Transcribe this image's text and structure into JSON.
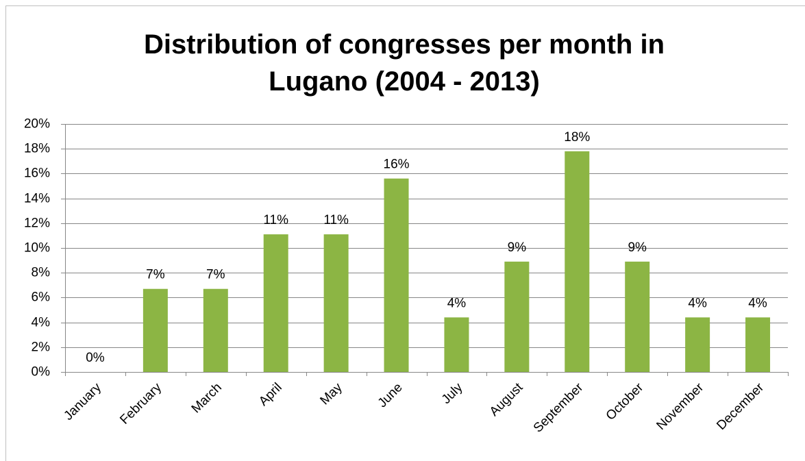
{
  "chart_data": {
    "type": "bar",
    "title": "Distribution of congresses per month in Lugano (2004 - 2013)",
    "categories": [
      "January",
      "February",
      "March",
      "April",
      "May",
      "June",
      "July",
      "August",
      "September",
      "October",
      "November",
      "December"
    ],
    "values": [
      0,
      6.7,
      6.7,
      11.1,
      11.1,
      15.6,
      4.4,
      8.9,
      17.8,
      8.9,
      4.4,
      4.4
    ],
    "value_labels": [
      "0%",
      "7%",
      "7%",
      "11%",
      "11%",
      "16%",
      "4%",
      "9%",
      "18%",
      "9%",
      "4%",
      "4%"
    ],
    "color": "#8cb544",
    "ylim": [
      0,
      20
    ],
    "yticks": [
      {
        "value": 0,
        "label": "0%"
      },
      {
        "value": 2,
        "label": "2%"
      },
      {
        "value": 4,
        "label": "4%"
      },
      {
        "value": 6,
        "label": "6%"
      },
      {
        "value": 8,
        "label": "8%"
      },
      {
        "value": 10,
        "label": "10%"
      },
      {
        "value": 12,
        "label": "12%"
      },
      {
        "value": 14,
        "label": "14%"
      },
      {
        "value": 16,
        "label": "16%"
      },
      {
        "value": 18,
        "label": "18%"
      },
      {
        "value": 20,
        "label": "20%"
      }
    ],
    "grid": true
  }
}
